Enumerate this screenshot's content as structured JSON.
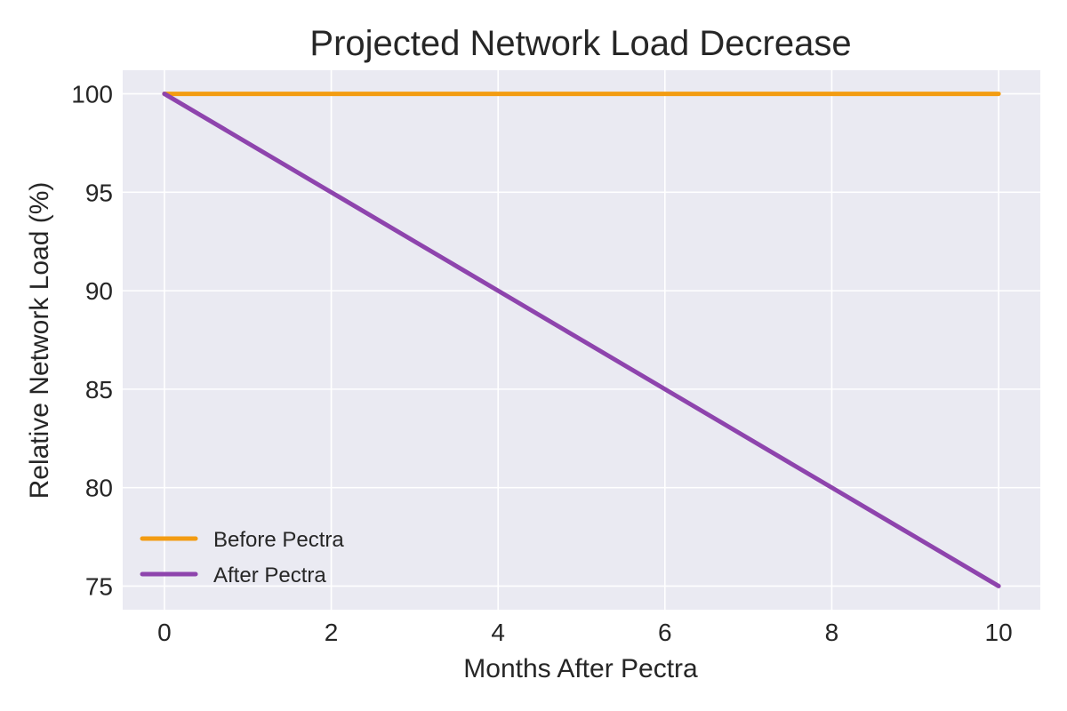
{
  "chart_data": {
    "type": "line",
    "title": "Projected Network Load Decrease",
    "xlabel": "Months After Pectra",
    "ylabel": "Relative Network Load (%)",
    "x": [
      0,
      1,
      2,
      3,
      4,
      5,
      6,
      7,
      8,
      9,
      10
    ],
    "xlim": [
      -0.5,
      10.5
    ],
    "ylim": [
      73.8,
      101.2
    ],
    "xticks": [
      0,
      2,
      4,
      6,
      8,
      10
    ],
    "yticks": [
      75,
      80,
      85,
      90,
      95,
      100
    ],
    "xtick_labels": [
      "0",
      "2",
      "4",
      "6",
      "8",
      "10"
    ],
    "ytick_labels": [
      "75",
      "80",
      "85",
      "90",
      "95",
      "100"
    ],
    "grid": true,
    "legend_position": "lower-left",
    "series": [
      {
        "name": "Before Pectra",
        "color": "#f39c12",
        "values": [
          100,
          100,
          100,
          100,
          100,
          100,
          100,
          100,
          100,
          100,
          100
        ]
      },
      {
        "name": "After Pectra",
        "color": "#8e44ad",
        "values": [
          100,
          97.5,
          95,
          92.5,
          90,
          87.5,
          85,
          82.5,
          80,
          77.5,
          75
        ]
      }
    ]
  }
}
